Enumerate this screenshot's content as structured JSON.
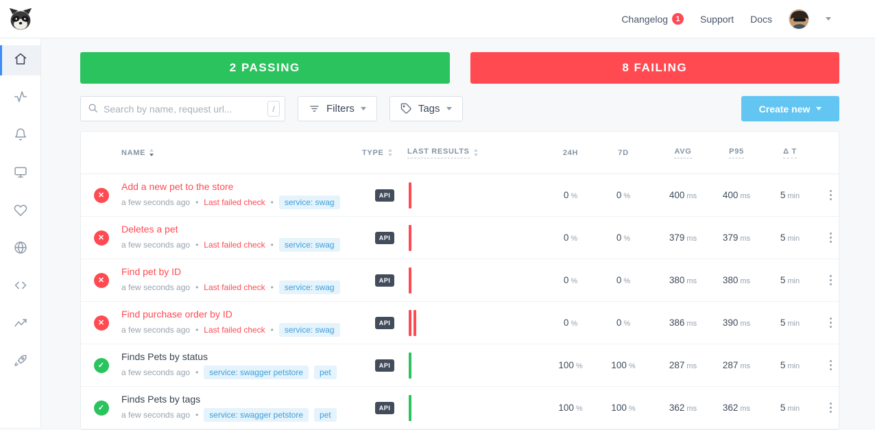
{
  "topbar": {
    "changelog_label": "Changelog",
    "changelog_badge": "1",
    "support_label": "Support",
    "docs_label": "Docs"
  },
  "summary": {
    "passing_label": "2 PASSING",
    "failing_label": "8 FAILING"
  },
  "toolbar": {
    "search_placeholder": "Search by name, request url...",
    "search_shortcut": "/",
    "filters_label": "Filters",
    "tags_label": "Tags",
    "create_new_label": "Create new"
  },
  "sidebar": {
    "items": [
      {
        "icon": "home-icon",
        "active": true
      },
      {
        "icon": "activity-icon",
        "active": false
      },
      {
        "icon": "bell-icon",
        "active": false
      },
      {
        "icon": "monitor-icon",
        "active": false
      },
      {
        "icon": "heart-icon",
        "active": false
      },
      {
        "icon": "globe-icon",
        "active": false
      },
      {
        "icon": "code-icon",
        "active": false
      },
      {
        "icon": "chart-icon",
        "active": false
      },
      {
        "icon": "rocket-icon",
        "active": false
      }
    ]
  },
  "icons": {
    "failing": "✕",
    "passing": "✓"
  },
  "table": {
    "headers": {
      "name": "NAME",
      "type": "TYPE",
      "last_results": "LAST RESULTS",
      "h24": "24H",
      "d7": "7D",
      "avg": "AVG",
      "p95": "P95",
      "delta_t": "Δ T"
    },
    "units": {
      "percent": "%",
      "milliseconds": "ms",
      "minutes": "min"
    },
    "rows": [
      {
        "name": "Add a new pet to the store",
        "status": "failing",
        "updated": "a few seconds ago",
        "last_check_label": "Last failed check",
        "tags": [
          "service: swag"
        ],
        "type_badge": "API",
        "results_bars": [
          "fail"
        ],
        "success_24h": "0",
        "success_7d": "0",
        "avg": "400",
        "p95": "400",
        "delta_t": "5"
      },
      {
        "name": "Deletes a pet",
        "status": "failing",
        "updated": "a few seconds ago",
        "last_check_label": "Last failed check",
        "tags": [
          "service: swag"
        ],
        "type_badge": "API",
        "results_bars": [
          "fail"
        ],
        "success_24h": "0",
        "success_7d": "0",
        "avg": "379",
        "p95": "379",
        "delta_t": "5"
      },
      {
        "name": "Find pet by ID",
        "status": "failing",
        "updated": "a few seconds ago",
        "last_check_label": "Last failed check",
        "tags": [
          "service: swag"
        ],
        "type_badge": "API",
        "results_bars": [
          "fail"
        ],
        "success_24h": "0",
        "success_7d": "0",
        "avg": "380",
        "p95": "380",
        "delta_t": "5"
      },
      {
        "name": "Find purchase order by ID",
        "status": "failing",
        "updated": "a few seconds ago",
        "last_check_label": "Last failed check",
        "tags": [
          "service: swag"
        ],
        "type_badge": "API",
        "results_bars": [
          "fail",
          "fail"
        ],
        "success_24h": "0",
        "success_7d": "0",
        "avg": "386",
        "p95": "390",
        "delta_t": "5"
      },
      {
        "name": "Finds Pets by status",
        "status": "passing",
        "updated": "a few seconds ago",
        "last_check_label": "",
        "tags": [
          "service: swagger petstore",
          "pet"
        ],
        "type_badge": "API",
        "results_bars": [
          "pass"
        ],
        "success_24h": "100",
        "success_7d": "100",
        "avg": "287",
        "p95": "287",
        "delta_t": "5"
      },
      {
        "name": "Finds Pets by tags",
        "status": "passing",
        "updated": "a few seconds ago",
        "last_check_label": "",
        "tags": [
          "service: swagger petstore",
          "pet"
        ],
        "type_badge": "API",
        "results_bars": [
          "pass"
        ],
        "success_24h": "100",
        "success_7d": "100",
        "avg": "362",
        "p95": "362",
        "delta_t": "5"
      }
    ]
  },
  "colors": {
    "passing_green": "#2bc35e",
    "failing_red": "#ff4a52",
    "create_new_blue": "#63c5f2",
    "tag_text_blue": "#3e9fd8",
    "active_nav_blue": "#3d8df5"
  }
}
